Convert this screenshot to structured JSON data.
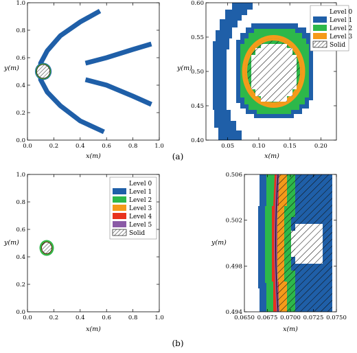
{
  "colors": {
    "level0": "#ffffff",
    "level1": "#1f5fa8",
    "level2": "#2db84a",
    "level3": "#f59a1a",
    "level4": "#e8321e",
    "level5": "#8a5aa6",
    "solid_boundary": "#111111"
  },
  "captions": [
    "(a)",
    "(b)"
  ],
  "chart_data": [
    {
      "type": "heatmap",
      "id": "a-left",
      "xlabel": "x(m)",
      "ylabel": "y(m)",
      "xlim": [
        0.0,
        1.0
      ],
      "ylim": [
        0.0,
        1.0
      ],
      "xticks": [
        "0.0",
        "0.2",
        "0.4",
        "0.6",
        "0.8",
        "1.0"
      ],
      "yticks": [
        "0.0",
        "0.2",
        "0.4",
        "0.6",
        "0.8",
        "1.0"
      ],
      "solid": {
        "cx": 0.12,
        "cy": 0.5,
        "r": 0.05
      },
      "level1_bands": [
        {
          "points": [
            [
              0.55,
              0.94
            ],
            [
              0.4,
              0.86
            ],
            [
              0.25,
              0.76
            ],
            [
              0.15,
              0.65
            ],
            [
              0.1,
              0.56
            ],
            [
              0.1,
              0.44
            ],
            [
              0.15,
              0.35
            ],
            [
              0.25,
              0.25
            ],
            [
              0.4,
              0.14
            ],
            [
              0.58,
              0.06
            ]
          ]
        },
        {
          "points": [
            [
              0.44,
              0.56
            ],
            [
              0.6,
              0.6
            ],
            [
              0.8,
              0.66
            ],
            [
              0.94,
              0.7
            ]
          ]
        },
        {
          "points": [
            [
              0.44,
              0.44
            ],
            [
              0.6,
              0.4
            ],
            [
              0.8,
              0.32
            ],
            [
              0.94,
              0.26
            ]
          ]
        }
      ]
    },
    {
      "type": "heatmap",
      "id": "a-right",
      "xlabel": "x(m)",
      "ylabel": "y(m)",
      "xlim": [
        0.015,
        0.225
      ],
      "ylim": [
        0.4,
        0.6
      ],
      "xticks": [
        "0.05",
        "0.10",
        "0.15",
        "0.20"
      ],
      "yticks": [
        "0.40",
        "0.45",
        "0.50",
        "0.55",
        "0.60"
      ],
      "solid": {
        "cx": 0.12,
        "cy": 0.5,
        "r": 0.05
      },
      "legend": [
        "Level 0",
        "Level 1",
        "Level 2",
        "Level 3",
        "Solid"
      ],
      "legend_position": "top-right"
    },
    {
      "type": "heatmap",
      "id": "b-left",
      "xlabel": "x(m)",
      "ylabel": "y(m)",
      "xlim": [
        0.0,
        1.0
      ],
      "ylim": [
        0.0,
        1.0
      ],
      "xticks": [
        "0.0",
        "0.2",
        "0.4",
        "0.6",
        "0.8",
        "1.0"
      ],
      "yticks": [
        "0.0",
        "0.2",
        "0.4",
        "0.6",
        "0.8",
        "1.0"
      ],
      "solid": {
        "cx": 0.12,
        "cy": 0.5,
        "r": 0.05
      },
      "legend": [
        "Level 0",
        "Level 1",
        "Level 2",
        "Level 3",
        "Level 4",
        "Level 5",
        "Solid"
      ],
      "legend_position": "top-right"
    },
    {
      "type": "heatmap",
      "id": "b-right",
      "xlabel": "x(m)",
      "ylabel": "y(m)",
      "xlim": [
        0.065,
        0.075
      ],
      "ylim": [
        0.494,
        0.506
      ],
      "xticks": [
        "0.0650",
        "0.0675",
        "0.0700",
        "0.0725",
        "0.0750"
      ],
      "yticks": [
        "0.494",
        "0.498",
        "0.502",
        "0.506"
      ],
      "solid": {
        "cx": 0.12,
        "cy": 0.5,
        "r": 0.05
      }
    }
  ]
}
